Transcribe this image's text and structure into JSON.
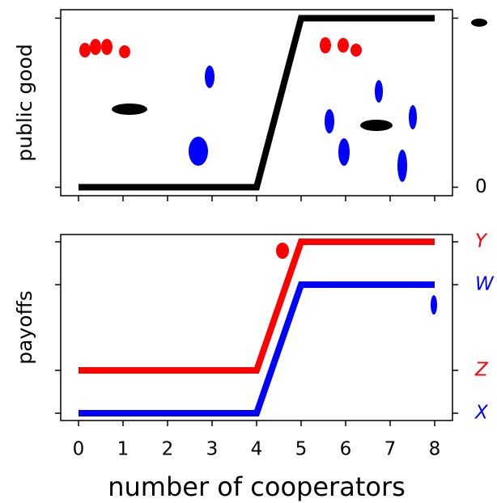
{
  "chart_data": [
    {
      "type": "line",
      "ylabel": "public good",
      "x": [
        0,
        4,
        5,
        8
      ],
      "series": [
        {
          "color": "#000000",
          "values": [
            0,
            0,
            1,
            1
          ]
        }
      ],
      "xlim": [
        -0.4,
        8.4
      ],
      "xticks": [
        0,
        1,
        2,
        3,
        4,
        5,
        6,
        7,
        8
      ],
      "show_xtick_labels": false,
      "ylim": [
        -0.05,
        1.05
      ],
      "yticks": [
        0,
        {
          "value": 1,
          "label": null
        }
      ]
    },
    {
      "type": "line",
      "ylabel": "payoffs",
      "xlabel": "number of cooperators",
      "x": [
        0,
        4,
        5,
        8
      ],
      "series": [
        {
          "color": "#ff0000",
          "values": [
            1,
            1,
            4,
            4
          ]
        },
        {
          "color": "#0000ff",
          "values": [
            0,
            0,
            3,
            3
          ]
        }
      ],
      "xlim": [
        -0.4,
        8.4
      ],
      "xticks": [
        0,
        1,
        2,
        3,
        4,
        5,
        6,
        7,
        8
      ],
      "show_xtick_labels": true,
      "ylim": [
        -0.17,
        4.17
      ],
      "yticks": [
        {
          "value": 0,
          "label": "X",
          "color": "#0000ff"
        },
        {
          "value": 1,
          "label": "Z",
          "color": "#ff0000"
        },
        {
          "value": 3,
          "label": "W",
          "color": "#0000ff"
        },
        {
          "value": 4,
          "label": "Y",
          "color": "#ff0000"
        }
      ]
    }
  ]
}
